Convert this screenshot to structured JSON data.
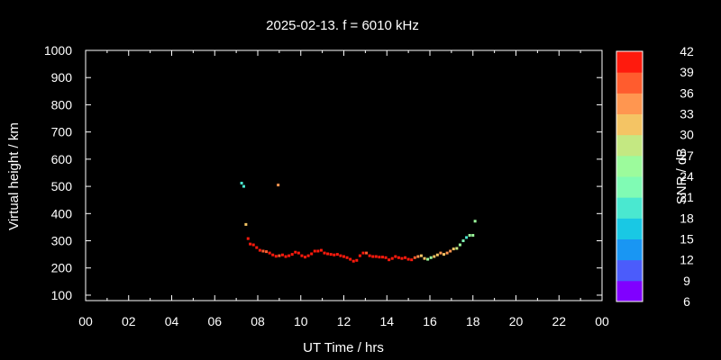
{
  "chart_data": {
    "type": "scatter",
    "title": "2025-02-13. f = 6010 kHz",
    "xlabel": "UT Time / hrs",
    "ylabel": "Virtual height / km",
    "xlim": [
      0,
      24
    ],
    "ylim": [
      80,
      1000
    ],
    "xticks": [
      "00",
      "02",
      "04",
      "06",
      "08",
      "10",
      "12",
      "14",
      "16",
      "18",
      "20",
      "22",
      "00"
    ],
    "yticks": [
      100,
      200,
      300,
      400,
      500,
      600,
      700,
      800,
      900,
      1000
    ],
    "grid": false,
    "colorbar": {
      "label": "SNR / dB",
      "min": 6,
      "max": 42,
      "ticks": [
        6,
        9,
        12,
        15,
        18,
        21,
        24,
        27,
        30,
        33,
        36,
        39,
        42
      ],
      "colors": [
        "#8000ff",
        "#4b5cfb",
        "#1996f3",
        "#19c8e4",
        "#4ae8d0",
        "#80fbb4",
        "#9cfb9c",
        "#c4e882",
        "#f4c464",
        "#ff9650",
        "#ff5c2e",
        "#ff1a0d"
      ]
    },
    "points": [
      {
        "x": 7.25,
        "y": 512,
        "snr": 18
      },
      {
        "x": 7.35,
        "y": 500,
        "snr": 18
      },
      {
        "x": 8.95,
        "y": 505,
        "snr": 34
      },
      {
        "x": 7.45,
        "y": 360,
        "snr": 31
      },
      {
        "x": 7.55,
        "y": 308,
        "snr": 40
      },
      {
        "x": 7.65,
        "y": 288,
        "snr": 39
      },
      {
        "x": 7.8,
        "y": 285,
        "snr": 39
      },
      {
        "x": 7.95,
        "y": 275,
        "snr": 39
      },
      {
        "x": 8.1,
        "y": 265,
        "snr": 39
      },
      {
        "x": 8.25,
        "y": 262,
        "snr": 37
      },
      {
        "x": 8.4,
        "y": 260,
        "snr": 37
      },
      {
        "x": 8.55,
        "y": 255,
        "snr": 39
      },
      {
        "x": 8.7,
        "y": 248,
        "snr": 40
      },
      {
        "x": 8.85,
        "y": 243,
        "snr": 39
      },
      {
        "x": 9.0,
        "y": 245,
        "snr": 38
      },
      {
        "x": 9.15,
        "y": 248,
        "snr": 39
      },
      {
        "x": 9.3,
        "y": 242,
        "snr": 40
      },
      {
        "x": 9.45,
        "y": 245,
        "snr": 39
      },
      {
        "x": 9.6,
        "y": 250,
        "snr": 40
      },
      {
        "x": 9.75,
        "y": 258,
        "snr": 40
      },
      {
        "x": 9.9,
        "y": 255,
        "snr": 40
      },
      {
        "x": 10.05,
        "y": 245,
        "snr": 40
      },
      {
        "x": 10.2,
        "y": 240,
        "snr": 39
      },
      {
        "x": 10.35,
        "y": 245,
        "snr": 40
      },
      {
        "x": 10.5,
        "y": 252,
        "snr": 40
      },
      {
        "x": 10.65,
        "y": 262,
        "snr": 39
      },
      {
        "x": 10.8,
        "y": 262,
        "snr": 39
      },
      {
        "x": 10.95,
        "y": 265,
        "snr": 40
      },
      {
        "x": 11.1,
        "y": 255,
        "snr": 40
      },
      {
        "x": 11.25,
        "y": 252,
        "snr": 40
      },
      {
        "x": 11.4,
        "y": 250,
        "snr": 40
      },
      {
        "x": 11.55,
        "y": 248,
        "snr": 40
      },
      {
        "x": 11.7,
        "y": 250,
        "snr": 40
      },
      {
        "x": 11.85,
        "y": 245,
        "snr": 40
      },
      {
        "x": 12.0,
        "y": 242,
        "snr": 40
      },
      {
        "x": 12.15,
        "y": 238,
        "snr": 40
      },
      {
        "x": 12.3,
        "y": 232,
        "snr": 40
      },
      {
        "x": 12.45,
        "y": 225,
        "snr": 40
      },
      {
        "x": 12.6,
        "y": 228,
        "snr": 40
      },
      {
        "x": 12.75,
        "y": 245,
        "snr": 40
      },
      {
        "x": 12.9,
        "y": 255,
        "snr": 40
      },
      {
        "x": 13.05,
        "y": 255,
        "snr": 38
      },
      {
        "x": 13.2,
        "y": 245,
        "snr": 40
      },
      {
        "x": 13.35,
        "y": 242,
        "snr": 40
      },
      {
        "x": 13.5,
        "y": 242,
        "snr": 40
      },
      {
        "x": 13.65,
        "y": 240,
        "snr": 40
      },
      {
        "x": 13.8,
        "y": 240,
        "snr": 40
      },
      {
        "x": 13.95,
        "y": 238,
        "snr": 40
      },
      {
        "x": 14.1,
        "y": 230,
        "snr": 40
      },
      {
        "x": 14.25,
        "y": 235,
        "snr": 40
      },
      {
        "x": 14.4,
        "y": 242,
        "snr": 40
      },
      {
        "x": 14.55,
        "y": 238,
        "snr": 40
      },
      {
        "x": 14.7,
        "y": 235,
        "snr": 40
      },
      {
        "x": 14.85,
        "y": 238,
        "snr": 39
      },
      {
        "x": 15.0,
        "y": 232,
        "snr": 40
      },
      {
        "x": 15.15,
        "y": 230,
        "snr": 40
      },
      {
        "x": 15.3,
        "y": 238,
        "snr": 38
      },
      {
        "x": 15.45,
        "y": 242,
        "snr": 33
      },
      {
        "x": 15.6,
        "y": 245,
        "snr": 31
      },
      {
        "x": 15.75,
        "y": 235,
        "snr": 30
      },
      {
        "x": 15.9,
        "y": 232,
        "snr": 25
      },
      {
        "x": 16.05,
        "y": 238,
        "snr": 26
      },
      {
        "x": 16.2,
        "y": 242,
        "snr": 30
      },
      {
        "x": 16.35,
        "y": 248,
        "snr": 32
      },
      {
        "x": 16.5,
        "y": 255,
        "snr": 34
      },
      {
        "x": 16.65,
        "y": 250,
        "snr": 32
      },
      {
        "x": 16.8,
        "y": 255,
        "snr": 34
      },
      {
        "x": 16.95,
        "y": 262,
        "snr": 33
      },
      {
        "x": 17.1,
        "y": 270,
        "snr": 32
      },
      {
        "x": 17.25,
        "y": 272,
        "snr": 28
      },
      {
        "x": 17.4,
        "y": 285,
        "snr": 25
      },
      {
        "x": 17.55,
        "y": 300,
        "snr": 23
      },
      {
        "x": 17.7,
        "y": 312,
        "snr": 20
      },
      {
        "x": 17.85,
        "y": 320,
        "snr": 24
      },
      {
        "x": 18.0,
        "y": 320,
        "snr": 26
      },
      {
        "x": 18.1,
        "y": 372,
        "snr": 24
      }
    ]
  }
}
